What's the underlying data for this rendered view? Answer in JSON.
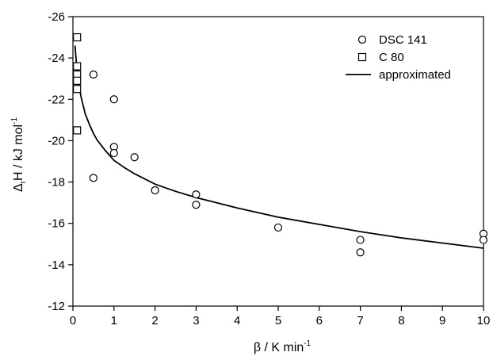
{
  "chart_data": {
    "type": "scatter",
    "xlabel_main": "β / K min",
    "xlabel_sup": "-1",
    "ylabel_main": "ΔH / kJ mol",
    "ylabel_sub": "r",
    "ylabel_sup": "-1",
    "xlim": [
      0,
      10
    ],
    "ylim": [
      -12,
      -26
    ],
    "y_axis_inverted": true,
    "x_ticks": [
      0,
      1,
      2,
      3,
      4,
      5,
      6,
      7,
      8,
      9,
      10
    ],
    "x_tick_labels": [
      "0",
      "1",
      "2",
      "3",
      "4",
      "5",
      "6",
      "7",
      "8",
      "9",
      "10"
    ],
    "y_ticks": [
      -26,
      -24,
      -22,
      -20,
      -18,
      -16,
      -14,
      -12
    ],
    "y_tick_labels": [
      "-26",
      "-24",
      "-22",
      "-20",
      "-18",
      "-16",
      "-14",
      "-12"
    ],
    "grid": false,
    "legend_position": "top-right",
    "series": [
      {
        "name": "DSC 141",
        "marker": "circle",
        "x": [
          0.5,
          0.5,
          1,
          1,
          1,
          1.5,
          2,
          3,
          3,
          5,
          7,
          7,
          10,
          10
        ],
        "y": [
          -23.2,
          -18.2,
          -22.0,
          -19.7,
          -19.4,
          -19.2,
          -17.6,
          -17.4,
          -16.9,
          -15.8,
          -15.2,
          -14.6,
          -15.5,
          -15.2
        ]
      },
      {
        "name": "C 80",
        "marker": "square",
        "x": [
          0.1,
          0.1,
          0.1,
          0.1,
          0.1,
          0.1
        ],
        "y": [
          -25.0,
          -23.6,
          -23.2,
          -22.9,
          -22.5,
          -20.5
        ]
      },
      {
        "name": "approximated",
        "marker": "line",
        "x": [
          0.05,
          0.1,
          0.15,
          0.2,
          0.3,
          0.4,
          0.5,
          0.6,
          0.8,
          1,
          1.25,
          1.5,
          2,
          2.5,
          3,
          4,
          5,
          6,
          7,
          8,
          9,
          10
        ],
        "y": [
          -24.6,
          -23.4,
          -22.6,
          -22.1,
          -21.3,
          -20.8,
          -20.35,
          -20.0,
          -19.5,
          -19.05,
          -18.7,
          -18.4,
          -17.9,
          -17.55,
          -17.25,
          -16.75,
          -16.3,
          -15.95,
          -15.6,
          -15.3,
          -15.05,
          -14.8
        ]
      }
    ]
  }
}
